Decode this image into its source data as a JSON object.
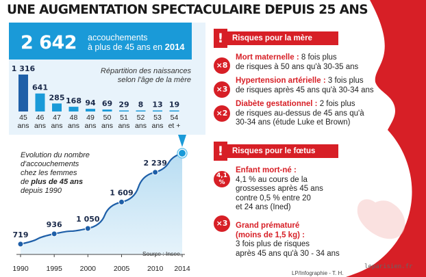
{
  "title": "UNE AUGMENTATION SPECTACULAIRE DEPUIS 25 ANS",
  "highlight": {
    "number": "2 642",
    "label_line1": "accouchements",
    "label_line2": "à plus de 45 ans en",
    "label_year": "2014"
  },
  "colors": {
    "accent_blue": "#1a9ad8",
    "dark_blue": "#1e5fa8",
    "light_blue_bg": "#e8f3fb",
    "risk_red": "#d71f26"
  },
  "chart_data": [
    {
      "type": "bar",
      "title": "Répartition des naissances selon l'âge de la mère",
      "title_line1": "Répartition des naissances",
      "title_line2": "selon l'âge de la mère",
      "categories": [
        [
          "45",
          "ans"
        ],
        [
          "46",
          "ans"
        ],
        [
          "47",
          "ans"
        ],
        [
          "48",
          "ans"
        ],
        [
          "49",
          "ans"
        ],
        [
          "50",
          "ans"
        ],
        [
          "51",
          "ans"
        ],
        [
          "52",
          "ans"
        ],
        [
          "53",
          "ans"
        ],
        [
          "54",
          "et +"
        ]
      ],
      "values": [
        1316,
        641,
        285,
        168,
        94,
        69,
        29,
        8,
        13,
        19
      ],
      "value_labels": [
        "1 316",
        "641",
        "285",
        "168",
        "94",
        "69",
        "29",
        "8",
        "13",
        "19"
      ],
      "ylim": [
        0,
        1316
      ],
      "grid": false,
      "legend": "none"
    },
    {
      "type": "area",
      "title": "Evolution du nombre d'accouchements chez les femmes de plus de 45 ans depuis 1990",
      "title_lines": [
        "Evolution du nombre",
        "d'accouchements",
        "chez les femmes"
      ],
      "title_line4_prefix": "de ",
      "title_line4_bold": "plus de 45 ans",
      "title_line5": "depuis 1990",
      "x": [
        1990,
        1995,
        2000,
        2005,
        2010,
        2014
      ],
      "y": [
        719,
        936,
        1050,
        1609,
        2239,
        2642
      ],
      "labeled_points": [
        {
          "x": 1990,
          "label": "719"
        },
        {
          "x": 1995,
          "label": "936"
        },
        {
          "x": 2000,
          "label": "1 050"
        },
        {
          "x": 2005,
          "label": "1 609"
        },
        {
          "x": 2010,
          "label": "2 239"
        }
      ],
      "x_ticks": [
        "1990",
        "1995",
        "2000",
        "2005",
        "2010",
        "2014"
      ],
      "xlim": [
        1990,
        2014
      ],
      "ylim": [
        500,
        2700
      ],
      "grid": false,
      "legend": "none",
      "source": "Source : Insee."
    }
  ],
  "mother": {
    "header": "Risques pour la mère",
    "items": [
      {
        "badge": "×8",
        "title": "Mort maternelle :",
        "line1_rest": " 8 fois plus",
        "lines": [
          "de risques à 50 ans qu'à 30-35 ans"
        ]
      },
      {
        "badge": "×3",
        "title": "Hypertension artérielle :",
        "line1_rest": " 3 fois plus",
        "lines": [
          "de risques après 45 ans qu'à 30-34 ans"
        ]
      },
      {
        "badge": "×2",
        "title": "Diabète gestationnel :",
        "line1_rest": " 2 fois plus",
        "lines": [
          "de risques au-dessus de 45 ans qu'à",
          "30-34 ans (étude Luke et Brown)"
        ]
      }
    ]
  },
  "fetus": {
    "header": "Risques pour le fœtus",
    "items": [
      {
        "badge_line1": "4,1",
        "badge_line2": "%",
        "title": "Enfant mort-né :",
        "lines": [
          "4,1 % au cours de la",
          "grossesses après 45 ans",
          "contre 0,5 % entre 20",
          "et 24 ans (Ined)"
        ]
      },
      {
        "badge": "×3",
        "title_line1": "Grand prématuré",
        "title_line2": "(moins de 1,5 kg) :",
        "lines": [
          "3 fois plus de risques",
          "après 45 ans qu'à 30 - 34 ans"
        ]
      }
    ]
  },
  "exclamation": "!",
  "credit": "LP/Infographie - T. H.",
  "watermark": "leparisien.fr"
}
